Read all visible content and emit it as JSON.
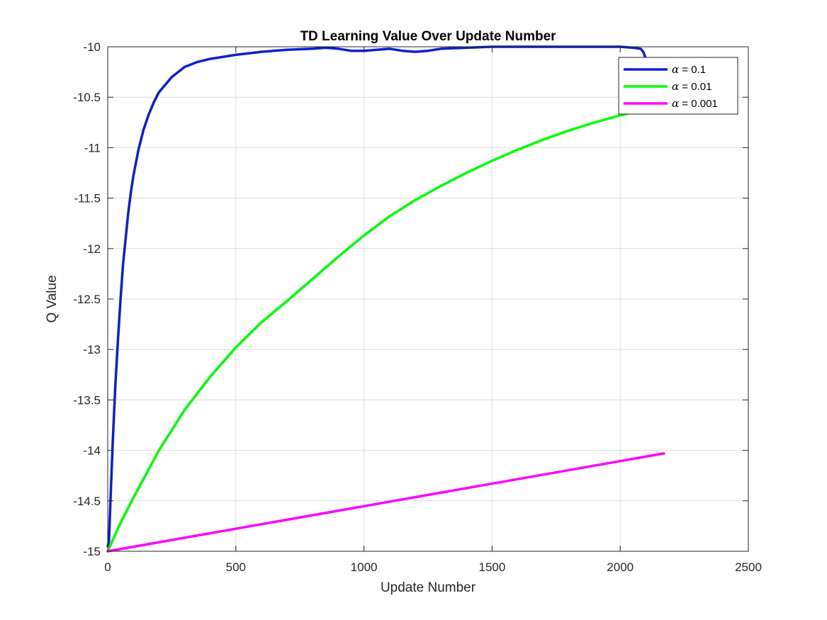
{
  "chart_data": {
    "type": "line",
    "title": "TD Learning Value Over Update Number",
    "xlabel": "Update Number",
    "ylabel": "Q Value",
    "xlim": [
      0,
      2500
    ],
    "ylim": [
      -15,
      -10
    ],
    "xticks": [
      0,
      500,
      1000,
      1500,
      2000,
      2500
    ],
    "xtick_labels": [
      "0",
      "500",
      "1000",
      "1500",
      "2000",
      "2500"
    ],
    "yticks": [
      -15,
      -14.5,
      -14,
      -13.5,
      -13,
      -12.5,
      -12,
      -11.5,
      -11,
      -10.5,
      -10
    ],
    "ytick_labels": [
      "-15",
      "-14.5",
      "-14",
      "-13.5",
      "-13",
      "-12.5",
      "-12",
      "-11.5",
      "-11",
      "-10.5",
      "-10"
    ],
    "grid": true,
    "legend_position": "top-right",
    "series": [
      {
        "name": "α = 0.1",
        "greek": "α",
        "suffix": " = 0.1",
        "color": "#0a1ed2",
        "x": [
          0,
          5,
          10,
          20,
          30,
          40,
          50,
          60,
          70,
          80,
          90,
          100,
          120,
          140,
          160,
          180,
          200,
          250,
          300,
          350,
          400,
          500,
          600,
          700,
          800,
          850,
          900,
          950,
          1000,
          1050,
          1100,
          1150,
          1200,
          1250,
          1300,
          1400,
          1500,
          1600,
          1700,
          1800,
          1900,
          2000,
          2050,
          2080,
          2090,
          2100
        ],
        "y": [
          -14.95,
          -14.9,
          -14.55,
          -13.9,
          -13.35,
          -12.9,
          -12.5,
          -12.15,
          -11.9,
          -11.65,
          -11.45,
          -11.28,
          -11.02,
          -10.82,
          -10.67,
          -10.55,
          -10.45,
          -10.3,
          -10.2,
          -10.15,
          -10.12,
          -10.08,
          -10.05,
          -10.03,
          -10.02,
          -10.01,
          -10.02,
          -10.04,
          -10.04,
          -10.03,
          -10.02,
          -10.04,
          -10.05,
          -10.04,
          -10.02,
          -10.01,
          -10.0,
          -10.0,
          -10.0,
          -10.0,
          -10.0,
          -10.0,
          -10.01,
          -10.02,
          -10.05,
          -10.12
        ]
      },
      {
        "name": "α = 0.01",
        "greek": "α",
        "suffix": " = 0.01",
        "color": "#00ff00",
        "x": [
          0,
          50,
          100,
          200,
          300,
          400,
          500,
          600,
          700,
          800,
          900,
          1000,
          1100,
          1200,
          1300,
          1400,
          1500,
          1600,
          1700,
          1800,
          1900,
          2000,
          2100
        ],
        "y": [
          -15.0,
          -14.72,
          -14.47,
          -14.0,
          -13.6,
          -13.27,
          -12.98,
          -12.73,
          -12.52,
          -12.3,
          -12.08,
          -11.87,
          -11.68,
          -11.52,
          -11.38,
          -11.25,
          -11.13,
          -11.02,
          -10.92,
          -10.83,
          -10.75,
          -10.68,
          -10.62
        ]
      },
      {
        "name": "α = 0.001",
        "greek": "α",
        "suffix": " = 0.001",
        "color": "#ff00ff",
        "x": [
          0,
          2170
        ],
        "y": [
          -15.0,
          -14.03
        ]
      }
    ]
  }
}
